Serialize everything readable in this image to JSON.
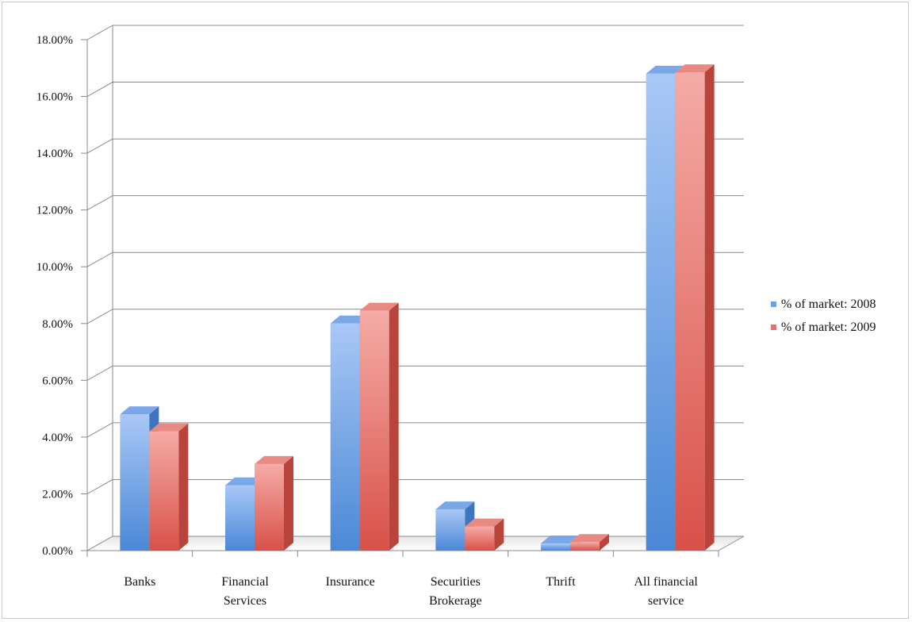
{
  "chart_data": {
    "type": "bar",
    "categories": [
      [
        "Banks"
      ],
      [
        "Financial",
        "Services"
      ],
      [
        "Insurance"
      ],
      [
        "Securities",
        "Brokerage"
      ],
      [
        "Thrift"
      ],
      [
        "All financial",
        "service"
      ]
    ],
    "series": [
      {
        "name": "% of market: 2008",
        "values": [
          4.8,
          2.3,
          8.0,
          1.45,
          0.25,
          16.8
        ]
      },
      {
        "name": "% of market: 2009",
        "values": [
          4.2,
          3.05,
          8.45,
          0.85,
          0.3,
          16.85
        ]
      }
    ],
    "ylim": [
      0,
      18
    ],
    "yticks": [
      "0.00%",
      "2.00%",
      "4.00%",
      "6.00%",
      "8.00%",
      "10.00%",
      "12.00%",
      "14.00%",
      "16.00%",
      "18.00%"
    ],
    "grid": true,
    "legend_position": "right",
    "colors": {
      "series_2008": "#6f9fe6",
      "series_2008_light": "#a9c8f6",
      "series_2008_dark": "#4a88d6",
      "series_2009": "#e9706a",
      "series_2009_light": "#f5aba6",
      "series_2009_dark": "#d85149",
      "grid": "#8a8a8a",
      "floor": "#dadada"
    }
  }
}
